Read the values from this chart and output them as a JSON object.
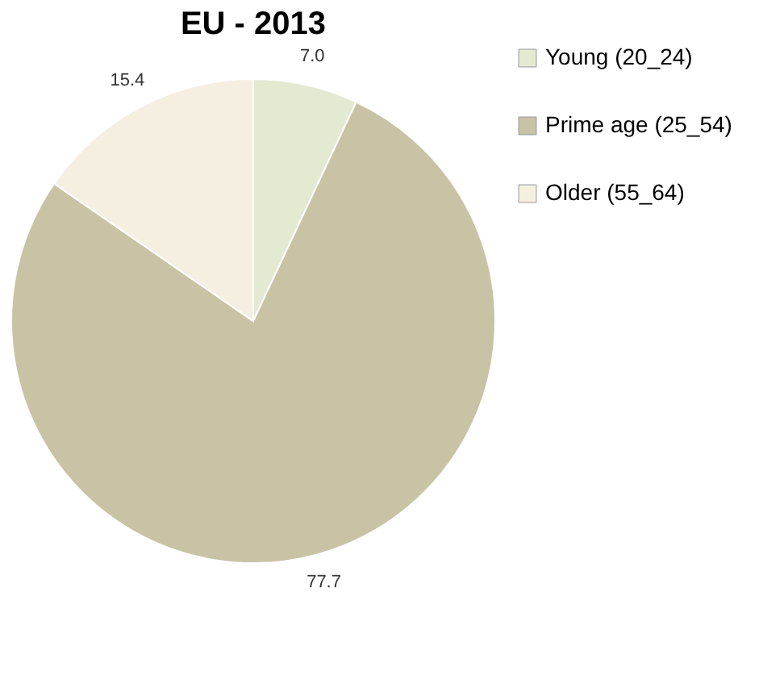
{
  "chart_data": {
    "type": "pie",
    "title": "EU - 2013",
    "categories": [
      "Young (20_24)",
      "Prime age (25_54)",
      "Older (55_64)"
    ],
    "values": [
      7.0,
      77.7,
      15.4
    ],
    "colors": [
      "#e4ead2",
      "#c9c3a5",
      "#f5efe2"
    ],
    "value_labels": [
      "7.0",
      "77.7",
      "15.4"
    ],
    "legend": "right"
  }
}
